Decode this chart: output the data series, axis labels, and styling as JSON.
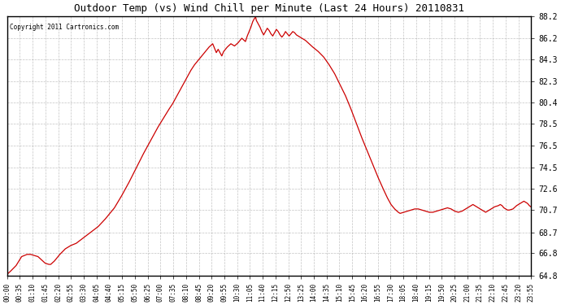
{
  "title": "Outdoor Temp (vs) Wind Chill per Minute (Last 24 Hours) 20110831",
  "copyright": "Copyright 2011 Cartronics.com",
  "line_color": "#cc0000",
  "bg_color": "#ffffff",
  "grid_color": "#aaaaaa",
  "ylim": [
    64.8,
    88.2
  ],
  "yticks": [
    64.8,
    66.8,
    68.7,
    70.7,
    72.6,
    74.5,
    76.5,
    78.5,
    80.4,
    82.3,
    84.3,
    86.2,
    88.2
  ],
  "xtick_labels": [
    "00:00",
    "00:35",
    "01:10",
    "01:45",
    "02:20",
    "02:55",
    "03:30",
    "04:05",
    "04:40",
    "05:15",
    "05:50",
    "06:25",
    "07:00",
    "07:35",
    "08:10",
    "08:45",
    "09:20",
    "09:55",
    "10:30",
    "11:05",
    "11:40",
    "12:15",
    "12:50",
    "13:25",
    "14:00",
    "14:35",
    "15:10",
    "15:45",
    "16:20",
    "16:55",
    "17:30",
    "18:05",
    "18:40",
    "19:15",
    "19:50",
    "20:25",
    "21:00",
    "21:35",
    "22:10",
    "22:45",
    "23:20",
    "23:55"
  ],
  "curve_points": [
    [
      0,
      64.9
    ],
    [
      10,
      65.2
    ],
    [
      25,
      65.7
    ],
    [
      40,
      66.5
    ],
    [
      55,
      66.7
    ],
    [
      65,
      66.7
    ],
    [
      75,
      66.6
    ],
    [
      85,
      66.5
    ],
    [
      95,
      66.2
    ],
    [
      105,
      65.9
    ],
    [
      115,
      65.8
    ],
    [
      120,
      65.8
    ],
    [
      130,
      66.1
    ],
    [
      145,
      66.7
    ],
    [
      160,
      67.2
    ],
    [
      175,
      67.5
    ],
    [
      190,
      67.7
    ],
    [
      210,
      68.2
    ],
    [
      230,
      68.7
    ],
    [
      250,
      69.2
    ],
    [
      270,
      69.9
    ],
    [
      295,
      70.9
    ],
    [
      315,
      72.0
    ],
    [
      335,
      73.2
    ],
    [
      355,
      74.5
    ],
    [
      375,
      75.8
    ],
    [
      395,
      77.0
    ],
    [
      415,
      78.2
    ],
    [
      430,
      79.0
    ],
    [
      445,
      79.8
    ],
    [
      455,
      80.3
    ],
    [
      465,
      80.9
    ],
    [
      475,
      81.5
    ],
    [
      485,
      82.1
    ],
    [
      495,
      82.7
    ],
    [
      505,
      83.3
    ],
    [
      515,
      83.8
    ],
    [
      525,
      84.2
    ],
    [
      535,
      84.6
    ],
    [
      545,
      85.0
    ],
    [
      555,
      85.4
    ],
    [
      565,
      85.7
    ],
    [
      575,
      84.9
    ],
    [
      580,
      85.2
    ],
    [
      590,
      84.6
    ],
    [
      595,
      85.0
    ],
    [
      605,
      85.4
    ],
    [
      615,
      85.7
    ],
    [
      625,
      85.5
    ],
    [
      635,
      85.8
    ],
    [
      645,
      86.2
    ],
    [
      655,
      85.9
    ],
    [
      660,
      86.4
    ],
    [
      665,
      86.8
    ],
    [
      670,
      87.2
    ],
    [
      675,
      87.7
    ],
    [
      680,
      88.0
    ],
    [
      683,
      88.1
    ],
    [
      685,
      87.8
    ],
    [
      690,
      87.5
    ],
    [
      695,
      87.2
    ],
    [
      700,
      86.8
    ],
    [
      705,
      86.5
    ],
    [
      710,
      86.8
    ],
    [
      715,
      87.1
    ],
    [
      720,
      86.9
    ],
    [
      725,
      86.6
    ],
    [
      730,
      86.4
    ],
    [
      735,
      86.7
    ],
    [
      740,
      87.0
    ],
    [
      745,
      86.8
    ],
    [
      750,
      86.5
    ],
    [
      755,
      86.3
    ],
    [
      760,
      86.5
    ],
    [
      765,
      86.8
    ],
    [
      770,
      86.6
    ],
    [
      775,
      86.4
    ],
    [
      780,
      86.6
    ],
    [
      785,
      86.8
    ],
    [
      790,
      86.7
    ],
    [
      795,
      86.5
    ],
    [
      800,
      86.4
    ],
    [
      810,
      86.2
    ],
    [
      820,
      86.0
    ],
    [
      830,
      85.7
    ],
    [
      840,
      85.4
    ],
    [
      855,
      85.0
    ],
    [
      870,
      84.5
    ],
    [
      885,
      83.8
    ],
    [
      900,
      83.0
    ],
    [
      915,
      82.0
    ],
    [
      930,
      81.0
    ],
    [
      945,
      79.8
    ],
    [
      960,
      78.5
    ],
    [
      975,
      77.2
    ],
    [
      990,
      76.0
    ],
    [
      1005,
      74.8
    ],
    [
      1020,
      73.6
    ],
    [
      1035,
      72.5
    ],
    [
      1045,
      71.8
    ],
    [
      1055,
      71.2
    ],
    [
      1065,
      70.8
    ],
    [
      1075,
      70.5
    ],
    [
      1080,
      70.4
    ],
    [
      1090,
      70.5
    ],
    [
      1100,
      70.6
    ],
    [
      1110,
      70.7
    ],
    [
      1120,
      70.8
    ],
    [
      1130,
      70.8
    ],
    [
      1140,
      70.7
    ],
    [
      1150,
      70.6
    ],
    [
      1160,
      70.5
    ],
    [
      1170,
      70.5
    ],
    [
      1180,
      70.6
    ],
    [
      1190,
      70.7
    ],
    [
      1200,
      70.8
    ],
    [
      1210,
      70.9
    ],
    [
      1220,
      70.8
    ],
    [
      1230,
      70.6
    ],
    [
      1240,
      70.5
    ],
    [
      1250,
      70.6
    ],
    [
      1260,
      70.8
    ],
    [
      1270,
      71.0
    ],
    [
      1280,
      71.2
    ],
    [
      1290,
      71.0
    ],
    [
      1300,
      70.8
    ],
    [
      1310,
      70.6
    ],
    [
      1315,
      70.5
    ],
    [
      1320,
      70.6
    ],
    [
      1330,
      70.8
    ],
    [
      1340,
      71.0
    ],
    [
      1350,
      71.1
    ],
    [
      1355,
      71.2
    ],
    [
      1360,
      71.1
    ],
    [
      1365,
      70.9
    ],
    [
      1370,
      70.8
    ],
    [
      1375,
      70.7
    ],
    [
      1380,
      70.7
    ],
    [
      1390,
      70.8
    ],
    [
      1400,
      71.1
    ],
    [
      1410,
      71.3
    ],
    [
      1420,
      71.5
    ],
    [
      1430,
      71.3
    ],
    [
      1435,
      71.1
    ],
    [
      1439,
      71.0
    ]
  ]
}
